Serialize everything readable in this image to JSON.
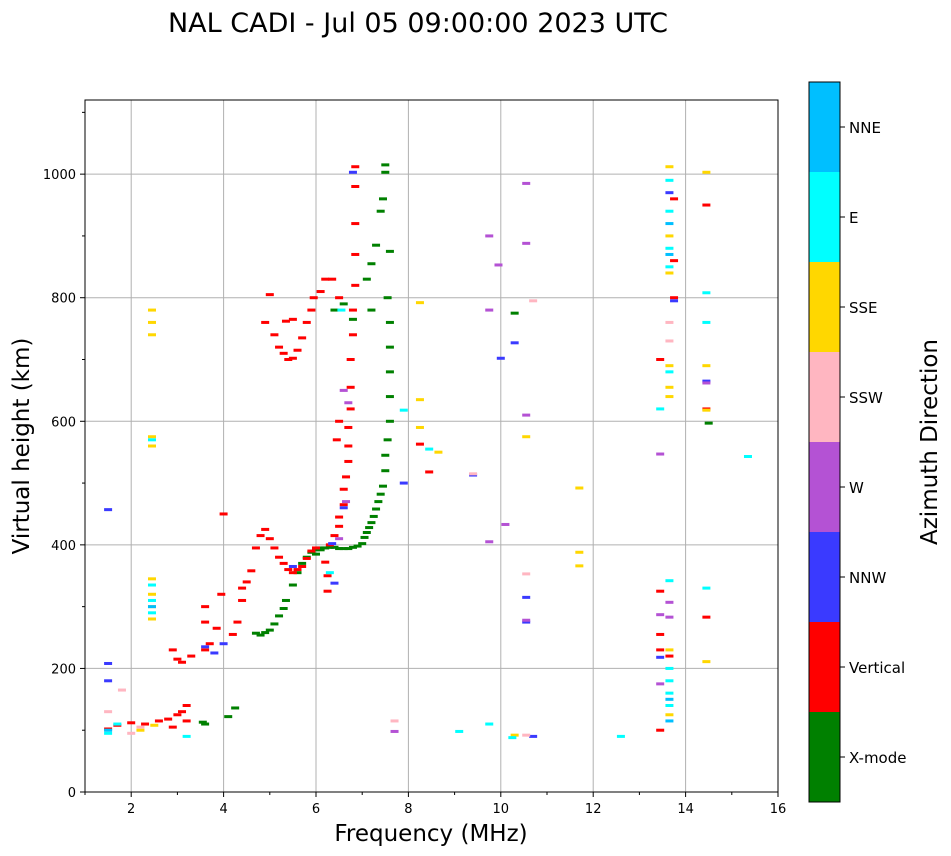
{
  "chart_data": {
    "type": "scatter",
    "title": "NAL CADI - Jul 05 09:00:00 2023 UTC",
    "xlabel": "Frequency (MHz)",
    "ylabel": "Virtual height (km)",
    "xlim": [
      1,
      16
    ],
    "ylim": [
      0,
      1120
    ],
    "xticks": [
      2,
      4,
      6,
      8,
      10,
      12,
      14,
      16
    ],
    "yticks": [
      0,
      200,
      400,
      600,
      800,
      1000
    ],
    "grid": true,
    "colorbar": {
      "label": "Azimuth Direction",
      "position": "right",
      "categories": [
        {
          "name": "X-mode",
          "color": "#008000"
        },
        {
          "name": "Vertical",
          "color": "#ff0000"
        },
        {
          "name": "NNW",
          "color": "#3a3aff"
        },
        {
          "name": "W",
          "color": "#b452d4"
        },
        {
          "name": "SSW",
          "color": "#ffb6c1"
        },
        {
          "name": "SSE",
          "color": "#ffd700"
        },
        {
          "name": "E",
          "color": "#00ffff"
        },
        {
          "name": "NNE",
          "color": "#00bfff"
        }
      ]
    },
    "series": [
      {
        "name": "X-mode",
        "points": [
          [
            3.55,
            113
          ],
          [
            3.6,
            110
          ],
          [
            4.1,
            122
          ],
          [
            4.25,
            136
          ],
          [
            4.7,
            257
          ],
          [
            4.8,
            254
          ],
          [
            4.9,
            258
          ],
          [
            5.0,
            262
          ],
          [
            5.1,
            272
          ],
          [
            5.2,
            285
          ],
          [
            5.3,
            297
          ],
          [
            5.35,
            310
          ],
          [
            5.5,
            335
          ],
          [
            5.6,
            355
          ],
          [
            5.7,
            370
          ],
          [
            5.8,
            380
          ],
          [
            5.9,
            388
          ],
          [
            6.0,
            392
          ],
          [
            6.1,
            395
          ],
          [
            6.2,
            395
          ],
          [
            6.3,
            396
          ],
          [
            6.4,
            396
          ],
          [
            6.5,
            394
          ],
          [
            6.6,
            394
          ],
          [
            6.7,
            394
          ],
          [
            6.8,
            396
          ],
          [
            6.9,
            398
          ],
          [
            7.0,
            402
          ],
          [
            7.05,
            412
          ],
          [
            7.1,
            420
          ],
          [
            7.15,
            428
          ],
          [
            7.2,
            436
          ],
          [
            7.25,
            446
          ],
          [
            7.3,
            458
          ],
          [
            7.35,
            470
          ],
          [
            7.4,
            482
          ],
          [
            7.45,
            495
          ],
          [
            7.5,
            520
          ],
          [
            7.5,
            545
          ],
          [
            7.55,
            570
          ],
          [
            7.6,
            600
          ],
          [
            7.6,
            640
          ],
          [
            7.6,
            680
          ],
          [
            7.6,
            720
          ],
          [
            7.6,
            760
          ],
          [
            7.55,
            800
          ],
          [
            7.6,
            875
          ],
          [
            7.2,
            780
          ],
          [
            7.1,
            830
          ],
          [
            7.2,
            855
          ],
          [
            7.3,
            885
          ],
          [
            7.4,
            940
          ],
          [
            7.45,
            960
          ],
          [
            7.5,
            1003
          ],
          [
            7.5,
            1015
          ],
          [
            6.4,
            780
          ],
          [
            6.6,
            790
          ],
          [
            6.8,
            765
          ],
          [
            14.5,
            597
          ],
          [
            10.3,
            775
          ],
          [
            6.0,
            385
          ],
          [
            6.1,
            392
          ]
        ]
      },
      {
        "name": "Vertical",
        "points": [
          [
            1.5,
            102
          ],
          [
            1.7,
            108
          ],
          [
            2.0,
            112
          ],
          [
            2.3,
            110
          ],
          [
            2.6,
            115
          ],
          [
            2.8,
            118
          ],
          [
            3.0,
            125
          ],
          [
            3.1,
            130
          ],
          [
            3.2,
            140
          ],
          [
            2.9,
            105
          ],
          [
            3.2,
            115
          ],
          [
            2.9,
            230
          ],
          [
            3.0,
            215
          ],
          [
            3.1,
            210
          ],
          [
            3.3,
            220
          ],
          [
            3.6,
            230
          ],
          [
            3.6,
            275
          ],
          [
            3.6,
            300
          ],
          [
            3.7,
            240
          ],
          [
            3.85,
            265
          ],
          [
            3.95,
            320
          ],
          [
            4.0,
            450
          ],
          [
            4.2,
            255
          ],
          [
            4.3,
            275
          ],
          [
            4.4,
            310
          ],
          [
            4.4,
            330
          ],
          [
            4.5,
            340
          ],
          [
            4.6,
            358
          ],
          [
            4.7,
            395
          ],
          [
            4.8,
            415
          ],
          [
            4.9,
            425
          ],
          [
            5.0,
            410
          ],
          [
            5.1,
            395
          ],
          [
            5.2,
            380
          ],
          [
            5.3,
            370
          ],
          [
            5.4,
            360
          ],
          [
            5.5,
            355
          ],
          [
            5.6,
            360
          ],
          [
            5.7,
            365
          ],
          [
            5.8,
            378
          ],
          [
            5.9,
            390
          ],
          [
            6.0,
            395
          ],
          [
            6.2,
            372
          ],
          [
            6.25,
            350
          ],
          [
            6.25,
            325
          ],
          [
            6.3,
            400
          ],
          [
            6.4,
            415
          ],
          [
            6.5,
            430
          ],
          [
            6.5,
            445
          ],
          [
            6.6,
            465
          ],
          [
            6.6,
            490
          ],
          [
            6.65,
            510
          ],
          [
            6.7,
            535
          ],
          [
            6.7,
            560
          ],
          [
            6.7,
            590
          ],
          [
            6.75,
            620
          ],
          [
            6.75,
            655
          ],
          [
            6.75,
            700
          ],
          [
            6.8,
            740
          ],
          [
            6.8,
            780
          ],
          [
            6.85,
            820
          ],
          [
            6.85,
            870
          ],
          [
            6.85,
            920
          ],
          [
            6.85,
            980
          ],
          [
            6.85,
            1012
          ],
          [
            4.9,
            760
          ],
          [
            5.0,
            805
          ],
          [
            5.1,
            740
          ],
          [
            5.2,
            720
          ],
          [
            5.3,
            710
          ],
          [
            5.4,
            700
          ],
          [
            5.5,
            702
          ],
          [
            5.6,
            715
          ],
          [
            5.7,
            735
          ],
          [
            5.8,
            760
          ],
          [
            5.9,
            780
          ],
          [
            5.95,
            800
          ],
          [
            6.1,
            810
          ],
          [
            6.2,
            830
          ],
          [
            6.35,
            830
          ],
          [
            6.5,
            800
          ],
          [
            5.35,
            762
          ],
          [
            5.5,
            765
          ],
          [
            6.45,
            570
          ],
          [
            6.5,
            600
          ],
          [
            8.25,
            563
          ],
          [
            8.45,
            518
          ],
          [
            13.45,
            700
          ],
          [
            13.45,
            325
          ],
          [
            13.45,
            255
          ],
          [
            13.45,
            230
          ],
          [
            13.45,
            100
          ],
          [
            13.65,
            220
          ],
          [
            13.75,
            860
          ],
          [
            13.75,
            960
          ],
          [
            13.75,
            800
          ],
          [
            14.45,
            950
          ],
          [
            14.45,
            620
          ],
          [
            14.45,
            283
          ]
        ]
      },
      {
        "name": "NNW",
        "points": [
          [
            1.5,
            208
          ],
          [
            1.5,
            457
          ],
          [
            1.5,
            180
          ],
          [
            3.6,
            235
          ],
          [
            3.8,
            225
          ],
          [
            4.0,
            240
          ],
          [
            5.5,
            365
          ],
          [
            6.4,
            338
          ],
          [
            6.8,
            1003
          ],
          [
            7.9,
            500
          ],
          [
            9.4,
            513
          ],
          [
            10.0,
            702
          ],
          [
            10.3,
            727
          ],
          [
            10.55,
            315
          ],
          [
            10.55,
            275
          ],
          [
            10.7,
            90
          ],
          [
            13.45,
            218
          ],
          [
            13.65,
            970
          ],
          [
            13.75,
            795
          ],
          [
            14.45,
            665
          ],
          [
            6.35,
            402
          ],
          [
            6.6,
            460
          ]
        ]
      },
      {
        "name": "W",
        "points": [
          [
            6.6,
            650
          ],
          [
            6.7,
            630
          ],
          [
            6.65,
            470
          ],
          [
            6.5,
            410
          ],
          [
            9.75,
            900
          ],
          [
            9.95,
            853
          ],
          [
            9.75,
            780
          ],
          [
            9.75,
            405
          ],
          [
            10.1,
            433
          ],
          [
            10.55,
            985
          ],
          [
            10.55,
            888
          ],
          [
            10.55,
            610
          ],
          [
            10.55,
            278
          ],
          [
            13.45,
            547
          ],
          [
            13.45,
            287
          ],
          [
            13.65,
            307
          ],
          [
            13.65,
            283
          ],
          [
            14.45,
            662
          ],
          [
            7.7,
            98
          ],
          [
            13.45,
            175
          ]
        ]
      },
      {
        "name": "SSW",
        "points": [
          [
            1.5,
            130
          ],
          [
            1.8,
            165
          ],
          [
            2.0,
            95
          ],
          [
            2.2,
            105
          ],
          [
            10.55,
            353
          ],
          [
            10.55,
            92
          ],
          [
            10.7,
            795
          ],
          [
            7.7,
            115
          ],
          [
            13.65,
            730
          ],
          [
            13.65,
            760
          ],
          [
            9.4,
            515
          ]
        ]
      },
      {
        "name": "SSE",
        "points": [
          [
            2.45,
            780
          ],
          [
            2.45,
            760
          ],
          [
            2.45,
            740
          ],
          [
            2.45,
            575
          ],
          [
            2.45,
            560
          ],
          [
            2.45,
            345
          ],
          [
            2.45,
            320
          ],
          [
            2.45,
            300
          ],
          [
            2.45,
            280
          ],
          [
            2.2,
            100
          ],
          [
            2.5,
            108
          ],
          [
            8.25,
            792
          ],
          [
            8.25,
            635
          ],
          [
            8.25,
            590
          ],
          [
            8.65,
            550
          ],
          [
            10.55,
            575
          ],
          [
            10.3,
            92
          ],
          [
            11.7,
            492
          ],
          [
            11.7,
            388
          ],
          [
            11.7,
            366
          ],
          [
            13.65,
            1012
          ],
          [
            13.65,
            900
          ],
          [
            13.65,
            840
          ],
          [
            13.65,
            690
          ],
          [
            13.65,
            655
          ],
          [
            13.65,
            640
          ],
          [
            13.65,
            230
          ],
          [
            13.65,
            125
          ],
          [
            14.45,
            1003
          ],
          [
            14.45,
            690
          ],
          [
            14.45,
            211
          ],
          [
            14.45,
            618
          ]
        ]
      },
      {
        "name": "E",
        "points": [
          [
            2.45,
            335
          ],
          [
            2.45,
            310
          ],
          [
            2.45,
            290
          ],
          [
            2.45,
            570
          ],
          [
            1.5,
            95
          ],
          [
            1.7,
            110
          ],
          [
            6.55,
            780
          ],
          [
            6.3,
            355
          ],
          [
            7.9,
            618
          ],
          [
            8.45,
            555
          ],
          [
            9.1,
            98
          ],
          [
            9.75,
            110
          ],
          [
            10.25,
            88
          ],
          [
            12.6,
            90
          ],
          [
            13.45,
            620
          ],
          [
            13.65,
            990
          ],
          [
            13.65,
            940
          ],
          [
            13.65,
            880
          ],
          [
            13.65,
            850
          ],
          [
            13.65,
            680
          ],
          [
            13.65,
            342
          ],
          [
            13.65,
            200
          ],
          [
            13.65,
            180
          ],
          [
            13.65,
            160
          ],
          [
            13.65,
            140
          ],
          [
            14.45,
            808
          ],
          [
            14.45,
            760
          ],
          [
            14.45,
            330
          ],
          [
            15.35,
            543
          ],
          [
            3.2,
            90
          ]
        ]
      },
      {
        "name": "NNE",
        "points": [
          [
            2.45,
            300
          ],
          [
            13.65,
            920
          ],
          [
            13.65,
            870
          ],
          [
            13.65,
            150
          ],
          [
            13.65,
            115
          ],
          [
            1.5,
            100
          ]
        ]
      }
    ]
  }
}
